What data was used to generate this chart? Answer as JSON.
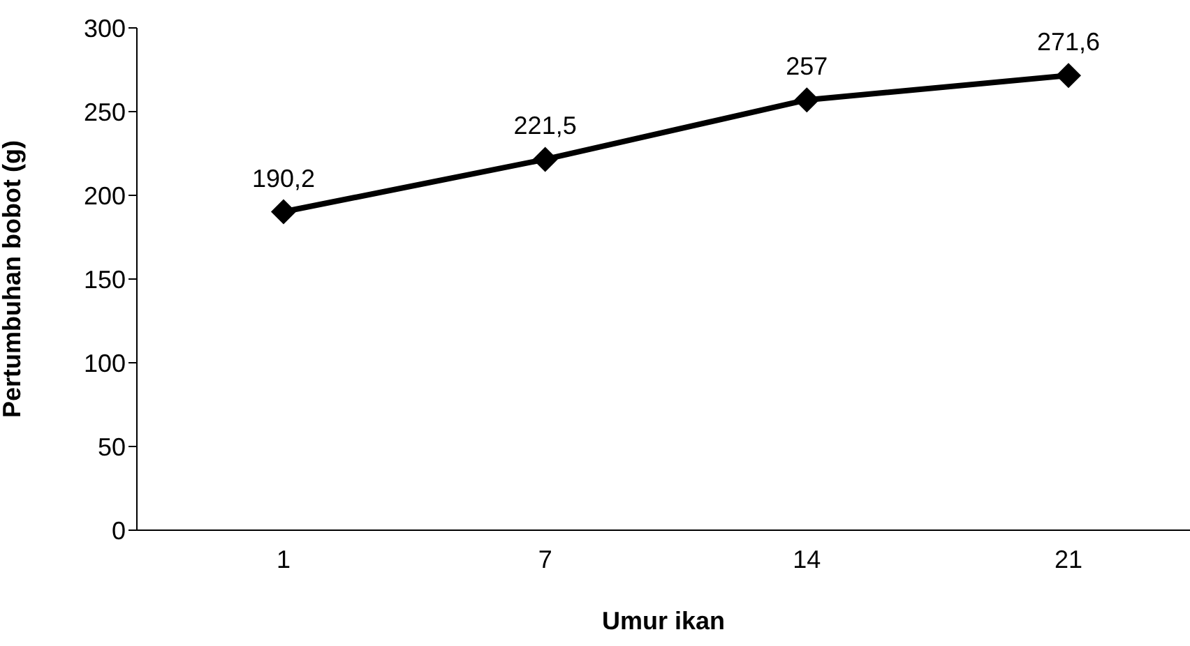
{
  "chart_data": {
    "type": "line",
    "xlabel": "Umur ikan",
    "ylabel": "Pertumbuhan bobot (g)",
    "categories": [
      "1",
      "7",
      "14",
      "21"
    ],
    "series": [
      {
        "color": "#000000",
        "values": [
          190.2,
          221.5,
          257,
          271.6
        ],
        "value_labels": [
          "190,2",
          "221,5",
          "257",
          "271,6"
        ]
      }
    ],
    "ylim": [
      0,
      300
    ],
    "yticks": [
      0,
      50,
      100,
      150,
      200,
      250,
      300
    ],
    "grid": false,
    "legend": false,
    "marker": "diamond",
    "line_style": "solid"
  }
}
